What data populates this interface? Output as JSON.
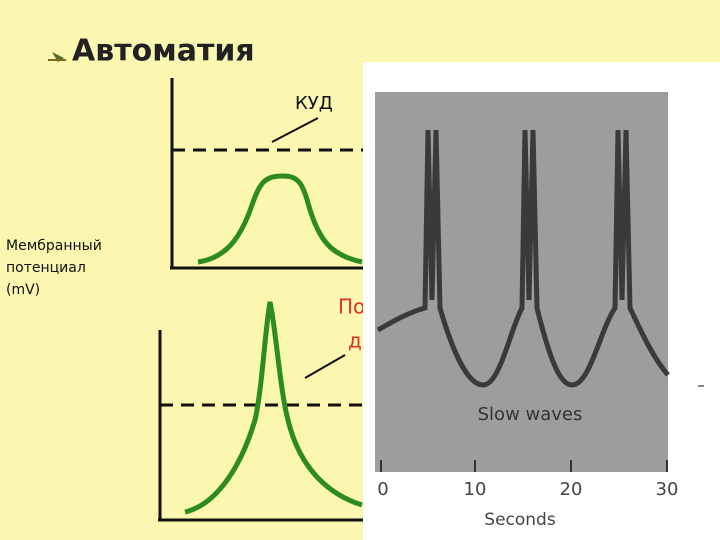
{
  "slide": {
    "title": "Автоматия",
    "upper_diagram": {
      "label": "КУД"
    },
    "y_axis_label": [
      "Мембранный",
      "потенциал",
      "(mV)"
    ],
    "lower_diagram": {
      "label_lines": [
        "По",
        "д"
      ]
    },
    "photo": {
      "annotation": "Slow waves",
      "x_ticks": [
        "0",
        "10",
        "20",
        "30"
      ],
      "x_axis_label": "Seconds"
    }
  }
}
